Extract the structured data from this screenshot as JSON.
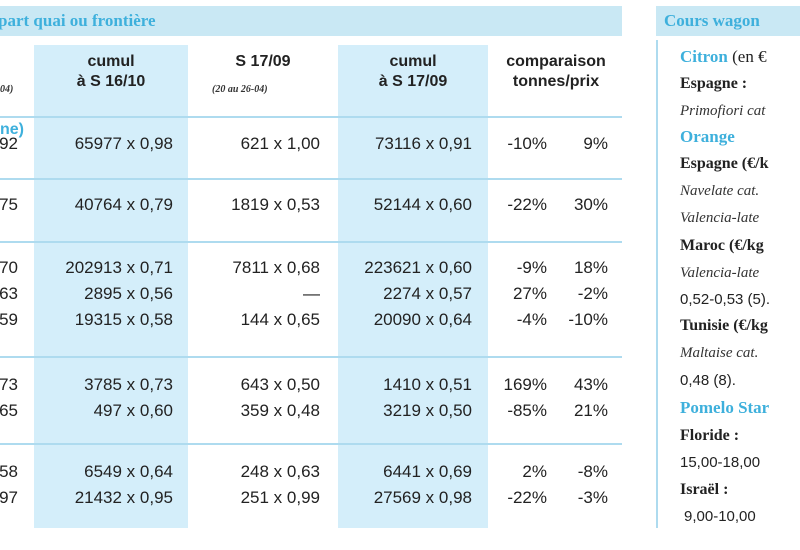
{
  "header_left": "part quai ou frontière",
  "header_right": "Cours wagon",
  "columns": [
    {
      "line1": "",
      "line2": "04)"
    },
    {
      "line1": "cumul",
      "line2": "à S 16/10"
    },
    {
      "line1": "S 17/09",
      "line2": "(20 au 26-04)"
    },
    {
      "line1": "cumul",
      "line2": "à S 17/09"
    },
    {
      "line1": "comparaison",
      "line2": "tonnes/prix"
    }
  ],
  "section1_label": "ne)",
  "rows": [
    {
      "c0": "92",
      "c1": "65977 x 0,98",
      "c2": "621 x 1,00",
      "c3": "73116 x 0,91",
      "t": "-10%",
      "p": "9%"
    },
    {
      "c0": "75",
      "c1": "40764 x 0,79",
      "c2": "1819 x 0,53",
      "c3": "52144 x 0,60",
      "t": "-22%",
      "p": "30%"
    },
    {
      "c0": "70",
      "c1": "202913 x 0,71",
      "c2": "7811 x 0,68",
      "c3": "223621 x 0,60",
      "t": "-9%",
      "p": "18%"
    },
    {
      "c0": "63",
      "c1": "2895 x 0,56",
      "c2": "—",
      "c3": "2274 x 0,57",
      "t": "27%",
      "p": "-2%"
    },
    {
      "c0": "59",
      "c1": "19315 x 0,58",
      "c2": "144 x 0,65",
      "c3": "20090 x 0,64",
      "t": "-4%",
      "p": "-10%"
    },
    {
      "c0": "73",
      "c1": "3785 x 0,73",
      "c2": "643 x 0,50",
      "c3": "1410 x 0,51",
      "t": "169%",
      "p": "43%"
    },
    {
      "c0": "65",
      "c1": "497 x 0,60",
      "c2": "359 x 0,48",
      "c3": "3219 x 0,50",
      "t": "-85%",
      "p": "21%"
    },
    {
      "c0": "58",
      "c1": "6549 x 0,64",
      "c2": "248 x 0,63",
      "c3": "6441 x 0,69",
      "t": "2%",
      "p": "-8%"
    },
    {
      "c0": "97",
      "c1": "21432 x 0,95",
      "c2": "251 x 0,99",
      "c3": "27569 x 0,98",
      "t": "-22%",
      "p": "-3%"
    }
  ],
  "sidebar": {
    "citron": "Citron",
    "citron_unit": "(en €",
    "espagne1": "Espagne :",
    "primofiori": "Primofiori cat",
    "orange": "Orange",
    "espagne2": "Espagne (€/k",
    "navelate": "Navelate cat.",
    "valencia1": "Valencia-late",
    "maroc": "Maroc (€/kg",
    "valencia2": "Valencia-late",
    "maroc_price": "0,52-0,53 (5).",
    "tunisie": "Tunisie (€/kg",
    "maltaise": "Maltaise cat.",
    "tunisie_price": "0,48 (8).",
    "pomelo": "Pomelo Star",
    "floride": "Floride :",
    "floride_price": "15,00-18,00",
    "israel": "Israël :",
    "israel_price": "9,00-10,00"
  }
}
